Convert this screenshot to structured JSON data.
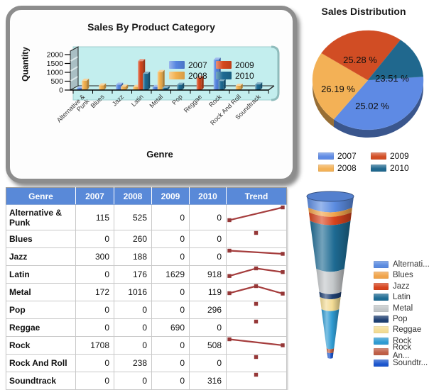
{
  "chart_data": [
    {
      "type": "bar",
      "title": "Sales By Product Category",
      "xlabel": "Genre",
      "ylabel": "Quantity",
      "ylim": [
        0,
        2000
      ],
      "yticks": [
        0,
        500,
        1000,
        1500,
        2000
      ],
      "grid": false,
      "legend_position": "inside-top-right",
      "plot_bg": "#c3eeee",
      "categories": [
        "Alternative & Punk",
        "Blues",
        "Jazz",
        "Latin",
        "Metal",
        "Pop",
        "Reggae",
        "Rock",
        "Rock And Roll",
        "Soundtrack"
      ],
      "series": [
        {
          "name": "2007",
          "color": "#5585e0",
          "values": [
            115,
            0,
            300,
            0,
            172,
            0,
            0,
            1708,
            0,
            0
          ]
        },
        {
          "name": "2008",
          "color": "#f2b04e",
          "values": [
            525,
            260,
            188,
            176,
            1016,
            0,
            0,
            0,
            238,
            0
          ]
        },
        {
          "name": "2009",
          "color": "#d6481e",
          "values": [
            0,
            0,
            0,
            1629,
            0,
            0,
            690,
            0,
            0,
            0
          ]
        },
        {
          "name": "2010",
          "color": "#1e6b93",
          "values": [
            0,
            0,
            0,
            918,
            119,
            296,
            0,
            508,
            0,
            316
          ]
        }
      ]
    },
    {
      "type": "pie",
      "title": "Sales Distribution",
      "legend_position": "bottom",
      "slices": [
        {
          "label": "2007",
          "value": 25.02,
          "display": "25.02 %",
          "color": "#5e8ae4"
        },
        {
          "label": "2008",
          "value": 26.19,
          "display": "26.19 %",
          "color": "#f3b156"
        },
        {
          "label": "2009",
          "value": 25.28,
          "display": "25.28 %",
          "color": "#d14d24"
        },
        {
          "label": "2010",
          "value": 23.51,
          "display": "23.51 %",
          "color": "#20688e"
        }
      ]
    },
    {
      "type": "funnel",
      "legend_position": "right",
      "items": [
        {
          "label": "Alternative & Punk",
          "display": "Alternati...",
          "value": 640,
          "color": "#5b8be0"
        },
        {
          "label": "Blues",
          "display": "Blues",
          "value": 260,
          "color": "#f0a34a"
        },
        {
          "label": "Jazz",
          "display": "Jazz",
          "value": 488,
          "color": "#d6431d"
        },
        {
          "label": "Latin",
          "display": "Latin",
          "value": 2723,
          "color": "#1e6b93"
        },
        {
          "label": "Metal",
          "display": "Metal",
          "value": 1307,
          "color": "#c3c7c9"
        },
        {
          "label": "Pop",
          "display": "Pop",
          "value": 296,
          "color": "#1e3f72"
        },
        {
          "label": "Reggae",
          "display": "Reggae",
          "value": 690,
          "color": "#f3dc95"
        },
        {
          "label": "Rock",
          "display": "Rock",
          "value": 2216,
          "color": "#2f9bd2"
        },
        {
          "label": "Rock And Roll",
          "display": "Rock An...",
          "value": 238,
          "color": "#bf5f47"
        },
        {
          "label": "Soundtrack",
          "display": "Soundtr...",
          "value": 316,
          "color": "#1c56cd"
        }
      ]
    },
    {
      "type": "table",
      "headers": [
        "Genre",
        "2007",
        "2008",
        "2009",
        "2010",
        "Trend"
      ],
      "header_bg": "#5989d8",
      "trend_color": "#a53d3d",
      "rows": [
        {
          "genre": "Alternative & Punk",
          "values": [
            115,
            525,
            0,
            0
          ]
        },
        {
          "genre": "Blues",
          "values": [
            0,
            260,
            0,
            0
          ]
        },
        {
          "genre": "Jazz",
          "values": [
            300,
            188,
            0,
            0
          ]
        },
        {
          "genre": "Latin",
          "values": [
            0,
            176,
            1629,
            918
          ]
        },
        {
          "genre": "Metal",
          "values": [
            172,
            1016,
            0,
            119
          ]
        },
        {
          "genre": "Pop",
          "values": [
            0,
            0,
            0,
            296
          ]
        },
        {
          "genre": "Reggae",
          "values": [
            0,
            0,
            690,
            0
          ]
        },
        {
          "genre": "Rock",
          "values": [
            1708,
            0,
            0,
            508
          ]
        },
        {
          "genre": "Rock And Roll",
          "values": [
            0,
            238,
            0,
            0
          ]
        },
        {
          "genre": "Soundtrack",
          "values": [
            0,
            0,
            0,
            316
          ]
        }
      ]
    }
  ]
}
